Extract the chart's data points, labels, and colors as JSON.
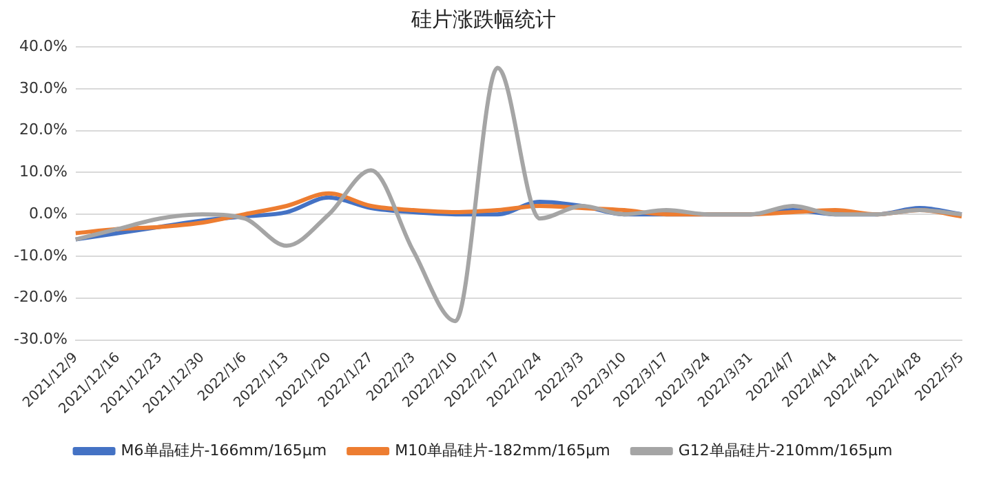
{
  "chart_data": {
    "type": "line",
    "title": "硅片涨跌幅统计",
    "categories": [
      "2021/12/9",
      "2021/12/16",
      "2021/12/23",
      "2021/12/30",
      "2022/1/6",
      "2022/1/13",
      "2022/1/20",
      "2022/1/27",
      "2022/2/3",
      "2022/2/10",
      "2022/2/17",
      "2022/2/24",
      "2022/3/3",
      "2022/3/10",
      "2022/3/17",
      "2022/3/24",
      "2022/3/31",
      "2022/4/7",
      "2022/4/14",
      "2022/4/21",
      "2022/4/28",
      "2022/5/5"
    ],
    "series": [
      {
        "name": "M6单晶硅片-166mm/165μm",
        "color": "#4472c4",
        "values": [
          -6,
          -4.5,
          -3,
          -1.5,
          -0.5,
          0.5,
          4,
          1.5,
          0.5,
          0,
          0,
          3,
          2,
          0,
          0,
          0,
          0,
          1,
          0,
          0,
          1.5,
          0
        ]
      },
      {
        "name": "M10单晶硅片-182mm/165μm",
        "color": "#ed7d31",
        "values": [
          -4.5,
          -3.5,
          -3,
          -2,
          0,
          2,
          5,
          2,
          1,
          0.5,
          1,
          2,
          1.5,
          1,
          0,
          0,
          0,
          0.5,
          1,
          0,
          1,
          -0.5
        ]
      },
      {
        "name": "G12单晶硅片-210mm/165μm",
        "color": "#a5a5a5",
        "values": [
          -6,
          -3.5,
          -1,
          0,
          -1,
          -7.5,
          0,
          10.5,
          -8.7,
          -25.5,
          35,
          -1,
          2,
          0,
          1,
          0,
          0,
          2,
          0,
          0,
          1,
          0
        ]
      }
    ],
    "ylim": [
      -30,
      40
    ],
    "yticks": [
      {
        "value": -30,
        "label": "-30.0%"
      },
      {
        "value": -20,
        "label": "-20.0%"
      },
      {
        "value": -10,
        "label": "-10.0%"
      },
      {
        "value": 0,
        "label": "0.0%"
      },
      {
        "value": 10,
        "label": "10.0%"
      },
      {
        "value": 20,
        "label": "20.0%"
      },
      {
        "value": 30,
        "label": "30.0%"
      },
      {
        "value": 40,
        "label": "40.0%"
      }
    ],
    "grid": "y",
    "legend": "bottom",
    "marker": "none",
    "line_style": "solid"
  }
}
